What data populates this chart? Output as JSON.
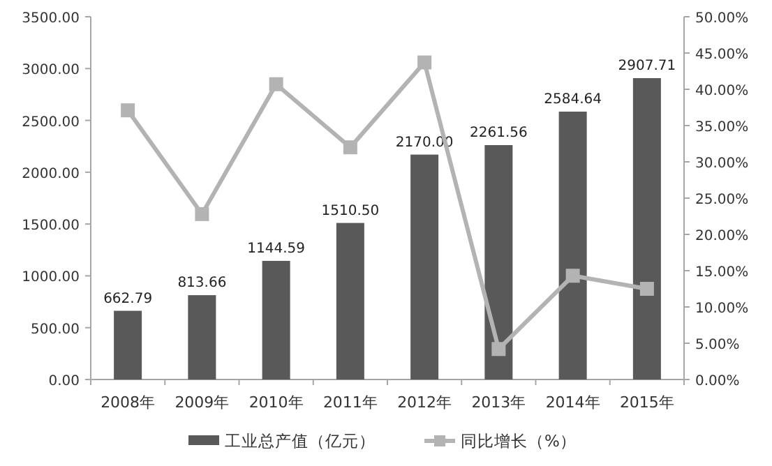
{
  "chart_data": {
    "type": "bar",
    "categories": [
      "2008年",
      "2009年",
      "2010年",
      "2011年",
      "2012年",
      "2013年",
      "2014年",
      "2015年"
    ],
    "series": [
      {
        "name": "工业总产值（亿元）",
        "color": "#595959",
        "values": [
          662.79,
          813.66,
          1144.59,
          1510.5,
          2170,
          2261.56,
          2584.64,
          2907.71
        ],
        "value_labels": [
          "662.79",
          "813.66",
          "1144.59",
          "1510.50",
          "2170.00",
          "2261.56",
          "2584.64",
          "2907.71"
        ]
      },
      {
        "name": "同比增长（%）",
        "type": "line",
        "axis": "y2",
        "color": "#b3b3b3",
        "marker": "square",
        "values": [
          37.1,
          22.8,
          40.7,
          32.0,
          43.7,
          4.2,
          14.3,
          12.5
        ]
      }
    ],
    "ylim": [
      0,
      3500
    ],
    "yticks": [
      {
        "value": 0,
        "label": "0.00"
      },
      {
        "value": 500,
        "label": "500.00"
      },
      {
        "value": 1000,
        "label": "1000.00"
      },
      {
        "value": 1500,
        "label": "1500.00"
      },
      {
        "value": 2000,
        "label": "2000.00"
      },
      {
        "value": 2500,
        "label": "2500.00"
      },
      {
        "value": 3000,
        "label": "3000.00"
      },
      {
        "value": 3500,
        "label": "3500.00"
      }
    ],
    "y2lim": [
      0,
      50
    ],
    "y2ticks": [
      {
        "value": 0,
        "label": "0.00%"
      },
      {
        "value": 5,
        "label": "5.00%"
      },
      {
        "value": 10,
        "label": "10.00%"
      },
      {
        "value": 15,
        "label": "15.00%"
      },
      {
        "value": 20,
        "label": "20.00%"
      },
      {
        "value": 25,
        "label": "25.00%"
      },
      {
        "value": 30,
        "label": "30.00%"
      },
      {
        "value": 35,
        "label": "35.00%"
      },
      {
        "value": 40,
        "label": "40.00%"
      },
      {
        "value": 45,
        "label": "45.00%"
      },
      {
        "value": 50,
        "label": "50.00%"
      }
    ],
    "legend": "bottom"
  }
}
